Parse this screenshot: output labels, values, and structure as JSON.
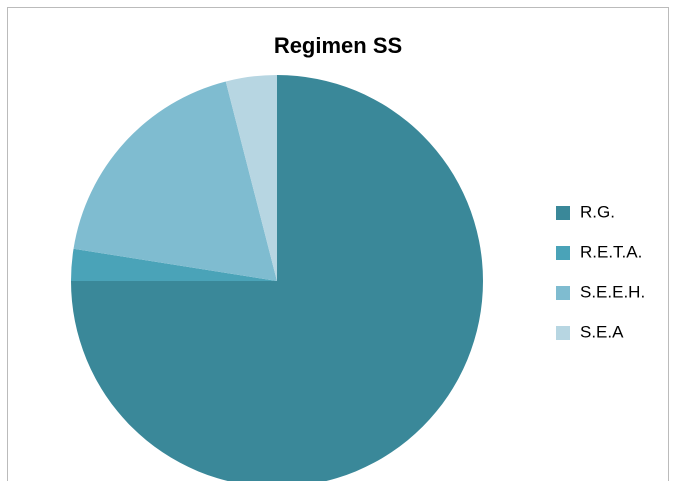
{
  "chart_data": {
    "type": "pie",
    "title": "Regimen SS",
    "categories": [
      "R.G.",
      "R.E.T.A.",
      "S.E.E.H.",
      "S.E.A"
    ],
    "values": [
      75,
      2.5,
      18.5,
      4
    ],
    "colors": [
      "#3a8899",
      "#4aa3b8",
      "#7fbcd0",
      "#b7d6e2"
    ],
    "legend": "right"
  }
}
